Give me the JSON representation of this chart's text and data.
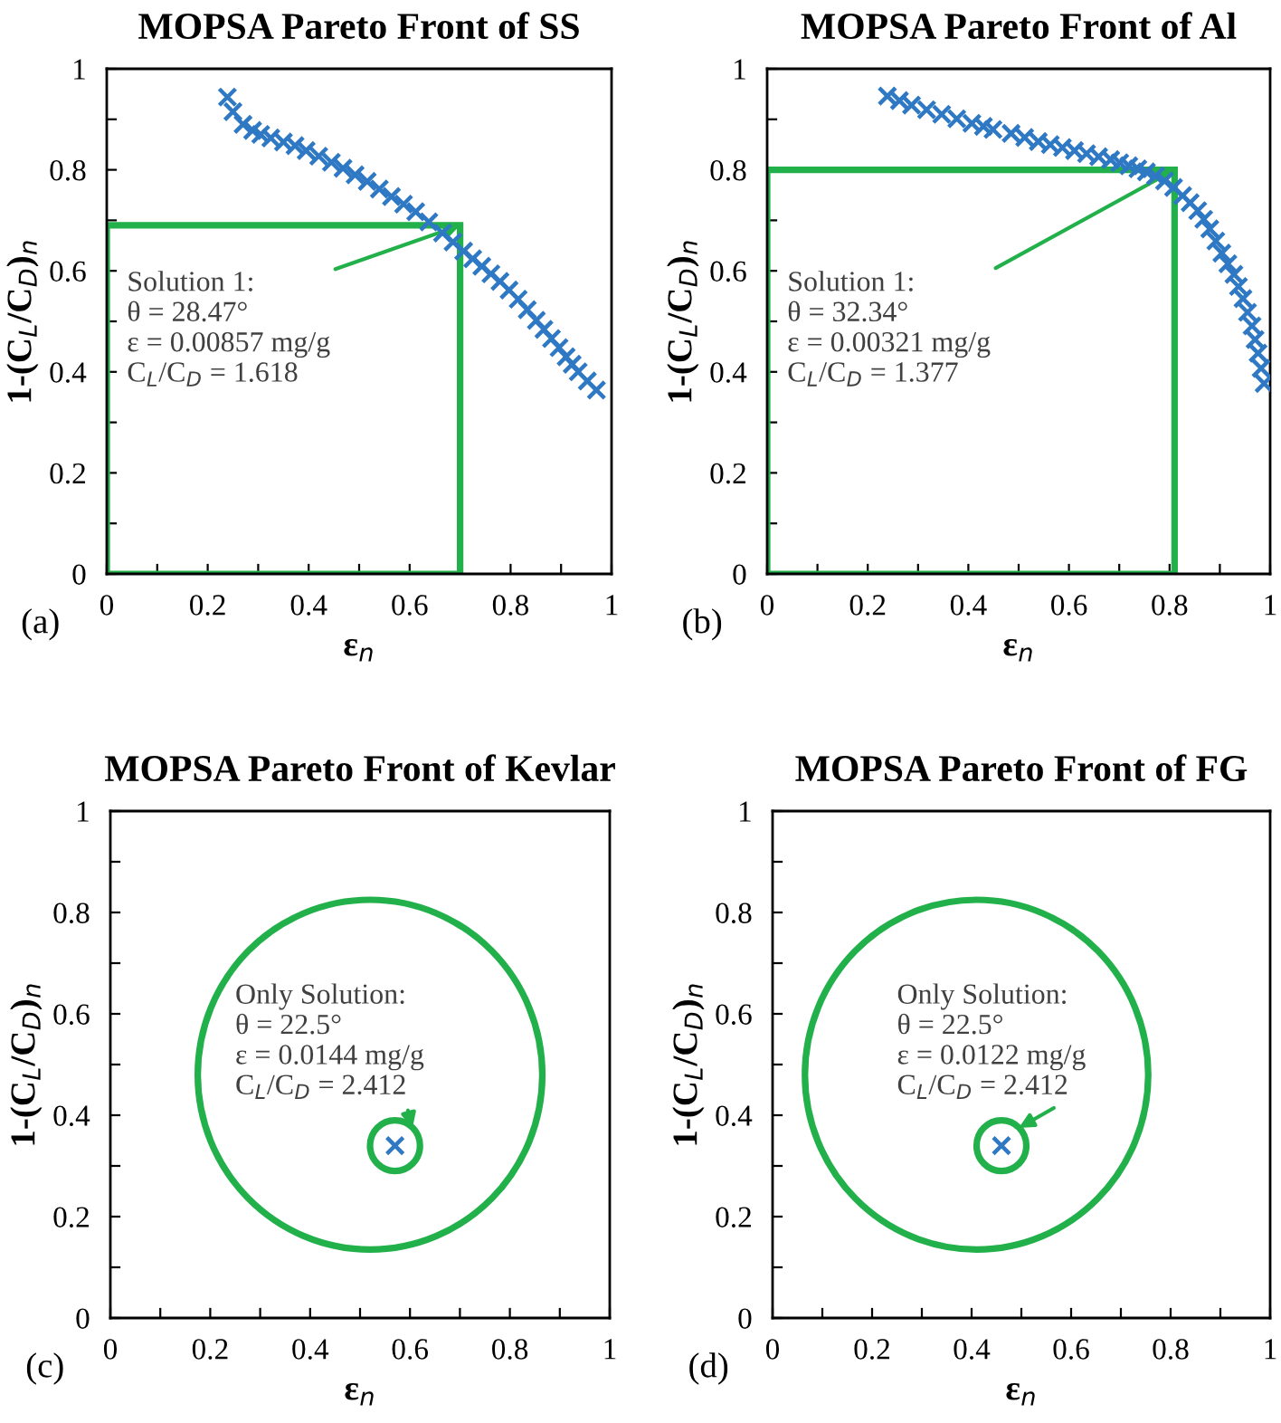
{
  "chart_data": [
    {
      "type": "scatter",
      "title": "MOPSA Pareto Front of SS",
      "xlabel": "ε$_{n}$",
      "ylabel": "1-(C$_{L}$/C$_{D}$)$_{n}$",
      "series": [
        {
          "color": "#2e78c4",
          "x": [
            0.239,
            0.25,
            0.27,
            0.289,
            0.305,
            0.325,
            0.35,
            0.373,
            0.395,
            0.42,
            0.445,
            0.468,
            0.492,
            0.516,
            0.54,
            0.564,
            0.588,
            0.612,
            0.638,
            0.665,
            0.686,
            0.707,
            0.725,
            0.743,
            0.761,
            0.779,
            0.797,
            0.815,
            0.833,
            0.851,
            0.866,
            0.881,
            0.896,
            0.91,
            0.922,
            0.934,
            0.952,
            0.97
          ],
          "values": [
            0.944,
            0.915,
            0.89,
            0.878,
            0.87,
            0.863,
            0.855,
            0.848,
            0.838,
            0.827,
            0.815,
            0.803,
            0.79,
            0.777,
            0.762,
            0.747,
            0.732,
            0.717,
            0.697,
            0.675,
            0.657,
            0.639,
            0.624,
            0.609,
            0.594,
            0.579,
            0.562,
            0.544,
            0.523,
            0.502,
            0.484,
            0.466,
            0.448,
            0.43,
            0.415,
            0.4,
            0.382,
            0.364
          ]
        }
      ],
      "marker": "cross",
      "xlim": [
        0,
        1
      ],
      "ylim": [
        0,
        1
      ],
      "xticks": [
        0,
        {
          "value": 0.1,
          "label": null
        },
        0.2,
        {
          "value": 0.3,
          "label": null
        },
        0.4,
        {
          "value": 0.5,
          "label": null
        },
        0.6,
        {
          "value": 0.7,
          "label": null
        },
        0.8,
        {
          "value": 0.9,
          "label": null
        },
        1
      ],
      "yticks": [
        0,
        {
          "value": 0.1,
          "label": null
        },
        0.2,
        {
          "value": 0.3,
          "label": null
        },
        0.4,
        {
          "value": 0.5,
          "label": null
        },
        0.6,
        {
          "value": 0.7,
          "label": null
        },
        0.8,
        {
          "value": 0.9,
          "label": null
        },
        1
      ],
      "annotations": [
        "(a)",
        {
          "text": "Solution 1:\nθ = 28.47°\nε = 0.00857 mg/g\nC$_{L}$/C$_{D}$ = 1.618",
          "x": 0.7,
          "y": 0.69
        }
      ]
    },
    {
      "type": "scatter",
      "title": "MOPSA Pareto Front of Al",
      "xlabel": "ε$_{n}$",
      "ylabel": "1-(C$_{L}$/C$_{D}$)$_{n}$",
      "series": [
        {
          "color": "#2e78c4",
          "x": [
            0.239,
            0.263,
            0.287,
            0.317,
            0.347,
            0.377,
            0.407,
            0.43,
            0.449,
            0.485,
            0.512,
            0.539,
            0.563,
            0.587,
            0.611,
            0.635,
            0.659,
            0.683,
            0.701,
            0.719,
            0.737,
            0.754,
            0.772,
            0.79,
            0.808,
            0.826,
            0.841,
            0.856,
            0.868,
            0.88,
            0.892,
            0.904,
            0.916,
            0.928,
            0.937,
            0.946,
            0.955,
            0.964,
            0.97,
            0.976,
            0.982,
            0.988
          ],
          "values": [
            0.946,
            0.937,
            0.928,
            0.919,
            0.91,
            0.901,
            0.892,
            0.886,
            0.88,
            0.872,
            0.864,
            0.856,
            0.85,
            0.844,
            0.838,
            0.832,
            0.826,
            0.82,
            0.814,
            0.808,
            0.802,
            0.796,
            0.788,
            0.778,
            0.765,
            0.749,
            0.735,
            0.719,
            0.702,
            0.683,
            0.659,
            0.635,
            0.614,
            0.593,
            0.569,
            0.545,
            0.518,
            0.491,
            0.464,
            0.437,
            0.407,
            0.377
          ]
        }
      ],
      "marker": "cross",
      "xlim": [
        0,
        1
      ],
      "ylim": [
        0,
        1
      ],
      "xticks": [
        0,
        {
          "value": 0.1,
          "label": null
        },
        0.2,
        {
          "value": 0.3,
          "label": null
        },
        0.4,
        {
          "value": 0.5,
          "label": null
        },
        0.6,
        {
          "value": 0.7,
          "label": null
        },
        0.8,
        {
          "value": 0.9,
          "label": null
        },
        1
      ],
      "yticks": [
        0,
        {
          "value": 0.1,
          "label": null
        },
        0.2,
        {
          "value": 0.3,
          "label": null
        },
        0.4,
        {
          "value": 0.5,
          "label": null
        },
        0.6,
        {
          "value": 0.7,
          "label": null
        },
        0.8,
        {
          "value": 0.9,
          "label": null
        },
        1
      ],
      "annotations": [
        "(b)",
        {
          "text": "Solution 1:\nθ = 32.34°\nε = 0.00321 mg/g\nC$_{L}$/C$_{D}$ = 1.377",
          "x": 0.81,
          "y": 0.8
        }
      ]
    },
    {
      "type": "scatter",
      "title": "MOPSA Pareto Front of Kevlar",
      "xlabel": "ε$_{n}$",
      "ylabel": "1-(C$_{L}$/C$_{D}$)$_{n}$",
      "series": [
        {
          "color": "#2e78c4",
          "x": [
            0.57
          ],
          "values": [
            0.34
          ]
        }
      ],
      "marker": "cross",
      "xlim": [
        0,
        1
      ],
      "ylim": [
        0,
        1
      ],
      "xticks": [
        0,
        {
          "value": 0.1,
          "label": null
        },
        0.2,
        {
          "value": 0.3,
          "label": null
        },
        0.4,
        {
          "value": 0.5,
          "label": null
        },
        0.6,
        {
          "value": 0.7,
          "label": null
        },
        0.8,
        {
          "value": 0.9,
          "label": null
        },
        1
      ],
      "yticks": [
        0,
        {
          "value": 0.1,
          "label": null
        },
        0.2,
        {
          "value": 0.3,
          "label": null
        },
        0.4,
        {
          "value": 0.5,
          "label": null
        },
        0.6,
        {
          "value": 0.7,
          "label": null
        },
        0.8,
        {
          "value": 0.9,
          "label": null
        },
        1
      ],
      "annotations": [
        "(c)",
        {
          "text": "Only Solution:\nθ = 22.5°\nε = 0.0144 mg/g\nC$_{L}$/C$_{D}$ = 2.412",
          "x": 0.57,
          "y": 0.34
        }
      ]
    },
    {
      "type": "scatter",
      "title": "MOPSA Pareto Front of FG",
      "xlabel": "ε$_{n}$",
      "ylabel": "1-(C$_{L}$/C$_{D}$)$_{n}$",
      "series": [
        {
          "color": "#2e78c4",
          "x": [
            0.46
          ],
          "values": [
            0.34
          ]
        }
      ],
      "marker": "cross",
      "xlim": [
        0,
        1
      ],
      "ylim": [
        0,
        1
      ],
      "xticks": [
        0,
        {
          "value": 0.1,
          "label": null
        },
        0.2,
        {
          "value": 0.3,
          "label": null
        },
        0.4,
        {
          "value": 0.5,
          "label": null
        },
        0.6,
        {
          "value": 0.7,
          "label": null
        },
        0.8,
        {
          "value": 0.9,
          "label": null
        },
        1
      ],
      "yticks": [
        0,
        {
          "value": 0.1,
          "label": null
        },
        0.2,
        {
          "value": 0.3,
          "label": null
        },
        0.4,
        {
          "value": 0.5,
          "label": null
        },
        0.6,
        {
          "value": 0.7,
          "label": null
        },
        0.8,
        {
          "value": 0.9,
          "label": null
        },
        1
      ],
      "annotations": [
        "(d)",
        {
          "text": "Only Solution:\nθ = 22.5°\nε = 0.0122 mg/g\nC$_{L}$/C$_{D}$ = 2.412",
          "x": 0.46,
          "y": 0.34
        }
      ]
    }
  ]
}
